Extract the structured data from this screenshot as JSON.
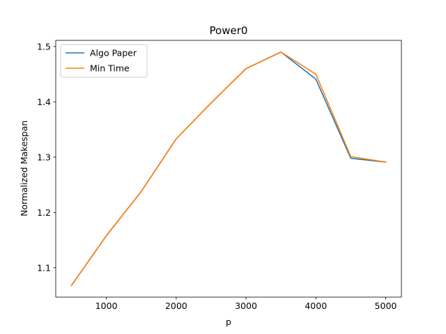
{
  "chart_data": {
    "type": "line",
    "title": "Power0",
    "xlabel": "p",
    "ylabel": "Normalized Makespan",
    "x": [
      500,
      1000,
      1500,
      2000,
      2500,
      3000,
      3500,
      4000,
      4500,
      5000
    ],
    "series": [
      {
        "name": "Algo Paper",
        "color": "#1f77b4",
        "values": [
          1.068,
          1.158,
          1.238,
          1.333,
          1.398,
          1.46,
          1.49,
          1.441,
          1.298,
          1.291
        ]
      },
      {
        "name": "Min Time",
        "color": "#ff7f0e",
        "values": [
          1.068,
          1.158,
          1.238,
          1.333,
          1.398,
          1.46,
          1.49,
          1.45,
          1.301,
          1.291
        ]
      }
    ],
    "xlim": [
      275,
      5225
    ],
    "ylim": [
      1.0469,
      1.5111
    ],
    "xticks": [
      1000,
      2000,
      3000,
      4000,
      5000
    ],
    "xtick_labels": [
      "1000",
      "2000",
      "3000",
      "4000",
      "5000"
    ],
    "yticks": [
      1.1,
      1.2,
      1.3,
      1.4,
      1.5
    ],
    "ytick_labels": [
      "1.1",
      "1.2",
      "1.3",
      "1.4",
      "1.5"
    ],
    "legend_position": "top-left",
    "grid": false
  }
}
